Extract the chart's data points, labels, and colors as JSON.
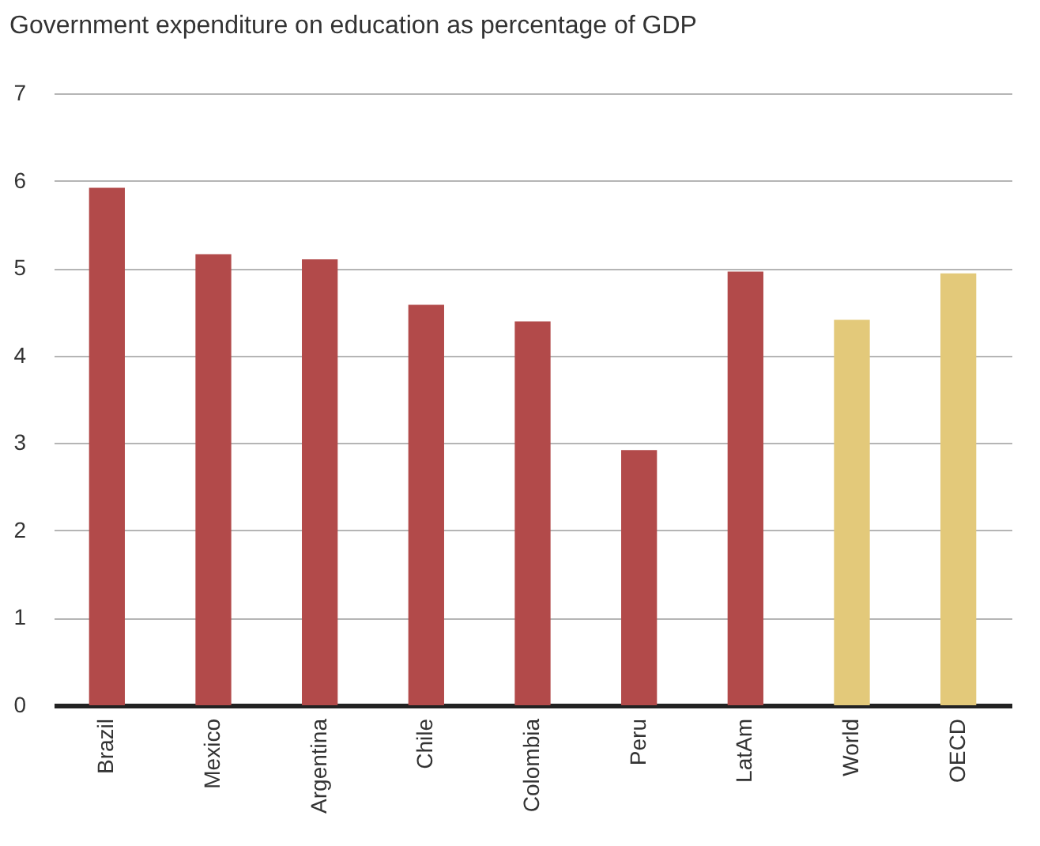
{
  "chart_data": {
    "type": "bar",
    "title": "Government expenditure on education as percentage of GDP",
    "categories": [
      "Brazil",
      "Mexico",
      "Argentina",
      "Chile",
      "Colombia",
      "Peru",
      "LatAm",
      "World",
      "OECD"
    ],
    "values": [
      5.92,
      5.16,
      5.1,
      4.58,
      4.39,
      2.92,
      4.96,
      4.41,
      4.94
    ],
    "colors": [
      "#b24a4a",
      "#b24a4a",
      "#b24a4a",
      "#b24a4a",
      "#b24a4a",
      "#b24a4a",
      "#b24a4a",
      "#e3c97a",
      "#e3c97a"
    ],
    "ylim": [
      0,
      7
    ],
    "yticks": [
      0,
      1,
      2,
      3,
      4,
      5,
      6,
      7
    ],
    "grid": "y"
  }
}
